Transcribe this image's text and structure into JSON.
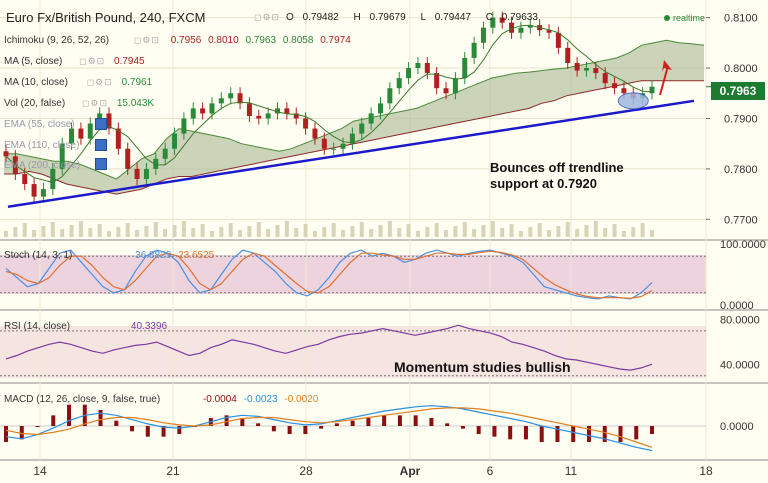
{
  "header": {
    "title": "Euro Fx/British Pound, 240, FXCM",
    "ohlc": {
      "o_label": "O",
      "o": "0.79482",
      "h_label": "H",
      "h": "0.79679",
      "l_label": "L",
      "l": "0.79447",
      "c_label": "C",
      "c": "0.79633"
    },
    "realtime": "realtime",
    "icons": "◻⚙⊡"
  },
  "indicators": {
    "ichimoku": {
      "label": "Ichimoku (9, 26, 52, 26)",
      "v1": "0.7956",
      "v2": "0.8010",
      "v3": "0.7963",
      "v4": "0.8058",
      "v5": "0.7974"
    },
    "ma5": {
      "label": "MA (5, close)",
      "value": "0.7945"
    },
    "ma10": {
      "label": "MA (10, close)",
      "value": "0.7961"
    },
    "vol": {
      "label": "Vol (20, false)",
      "value": "15.043K"
    },
    "ema55": {
      "label": "EMA (55, close)"
    },
    "ema110": {
      "label": "EMA (110, close)"
    },
    "ema200": {
      "label": "EMA (200, close)"
    }
  },
  "price_box": "0.7963",
  "annotations": {
    "bounce_line1": "Bounces off trendline",
    "bounce_line2": "support at 0.7920",
    "momentum": "Momentum studies bullish"
  },
  "stoch": {
    "label": "Stoch (14, 3, 1)",
    "k": "36.8829",
    "d": "23.6525",
    "axis": [
      "100.0000",
      "0.0000"
    ]
  },
  "rsi": {
    "label": "RSI (14, close)",
    "value": "40.3396",
    "axis": [
      "80.0000",
      "40.0000"
    ]
  },
  "macd": {
    "label": "MACD (12, 26, close, 9, false, true)",
    "v1": "-0.0004",
    "v2": "-0.0023",
    "v3": "-0.0020",
    "axis": [
      "0.0000"
    ]
  },
  "chart_data": {
    "type": "candlestick",
    "title": "Euro Fx/British Pound, 240, FXCM",
    "ylim": [
      0.7665,
      0.8125
    ],
    "price_ticks": [
      "0.8100",
      "0.8000",
      "0.7900",
      "0.7800",
      "0.7700"
    ],
    "x_ticks": [
      "14",
      "21",
      "28",
      "Apr",
      "6",
      "11",
      "18"
    ],
    "current_price": 0.7963,
    "trendline": {
      "start": 0.7725,
      "end": 0.7935
    },
    "candles_close": [
      0.7825,
      0.779,
      0.777,
      0.7745,
      0.776,
      0.78,
      0.785,
      0.788,
      0.786,
      0.789,
      0.791,
      0.788,
      0.784,
      0.78,
      0.778,
      0.78,
      0.782,
      0.784,
      0.787,
      0.79,
      0.792,
      0.791,
      0.793,
      0.794,
      0.795,
      0.793,
      0.7905,
      0.79,
      0.791,
      0.792,
      0.791,
      0.79,
      0.788,
      0.786,
      0.784,
      0.784,
      0.785,
      0.787,
      0.789,
      0.791,
      0.793,
      0.796,
      0.798,
      0.8,
      0.801,
      0.799,
      0.796,
      0.795,
      0.798,
      0.802,
      0.805,
      0.808,
      0.81,
      0.809,
      0.807,
      0.808,
      0.8085,
      0.8075,
      0.807,
      0.804,
      0.801,
      0.7995,
      0.8,
      0.799,
      0.797,
      0.796,
      0.795,
      0.794,
      0.795,
      0.7963
    ],
    "cloud_upper": [
      0.783,
      0.783,
      0.7825,
      0.782,
      0.7815,
      0.7815,
      0.781,
      0.78,
      0.779,
      0.778,
      0.78,
      0.782,
      0.783,
      0.786,
      0.788,
      0.7875,
      0.787,
      0.7865,
      0.786,
      0.785,
      0.7845,
      0.784,
      0.7835,
      0.784,
      0.785,
      0.786,
      0.787,
      0.788,
      0.7895,
      0.79,
      0.7905,
      0.791,
      0.7915,
      0.792,
      0.793,
      0.794,
      0.795,
      0.796,
      0.797,
      0.798,
      0.7985,
      0.799,
      0.7992,
      0.7995,
      0.7998,
      0.8,
      0.8005,
      0.801,
      0.8015,
      0.802,
      0.803,
      0.8045,
      0.805,
      0.8055,
      0.805,
      0.8048,
      0.8045
    ],
    "cloud_lower": [
      0.779,
      0.779,
      0.7795,
      0.779,
      0.778,
      0.777,
      0.7765,
      0.776,
      0.7755,
      0.775,
      0.7755,
      0.776,
      0.777,
      0.778,
      0.7785,
      0.7785,
      0.779,
      0.7795,
      0.78,
      0.7805,
      0.781,
      0.7815,
      0.782,
      0.7825,
      0.783,
      0.7835,
      0.784,
      0.7845,
      0.785,
      0.7855,
      0.786,
      0.7865,
      0.787,
      0.7875,
      0.788,
      0.7885,
      0.789,
      0.7895,
      0.79,
      0.7905,
      0.791,
      0.7915,
      0.792,
      0.793,
      0.7935,
      0.7945,
      0.795,
      0.7955,
      0.796,
      0.7965,
      0.797,
      0.7975,
      0.7975,
      0.7975,
      0.7975,
      0.7975,
      0.7975
    ],
    "stoch_k": [
      60,
      45,
      30,
      35,
      60,
      85,
      90,
      70,
      50,
      30,
      20,
      25,
      55,
      80,
      90,
      85,
      70,
      40,
      20,
      25,
      50,
      75,
      90,
      85,
      70,
      55,
      35,
      20,
      15,
      25,
      45,
      70,
      85,
      90,
      80,
      85,
      80,
      70,
      75,
      85,
      90,
      85,
      80,
      85,
      88,
      90,
      85,
      80,
      70,
      50,
      30,
      25,
      20,
      15,
      12,
      10,
      15,
      12,
      10,
      20,
      36.9
    ],
    "stoch_d": [
      55,
      50,
      40,
      35,
      45,
      65,
      80,
      80,
      65,
      45,
      30,
      25,
      40,
      60,
      80,
      85,
      80,
      60,
      35,
      25,
      35,
      55,
      75,
      85,
      80,
      65,
      50,
      35,
      22,
      20,
      30,
      50,
      70,
      85,
      85,
      82,
      80,
      75,
      75,
      80,
      85,
      85,
      83,
      83,
      86,
      88,
      86,
      82,
      75,
      60,
      45,
      33,
      25,
      18,
      14,
      12,
      12,
      12,
      11,
      14,
      23.7
    ],
    "stoch_levels": [
      80,
      20
    ],
    "rsi": [
      45,
      48,
      52,
      55,
      58,
      60,
      58,
      55,
      52,
      50,
      53,
      55,
      57,
      58,
      60,
      56,
      52,
      48,
      50,
      55,
      58,
      62,
      60,
      58,
      55,
      52,
      50,
      53,
      56,
      58,
      62,
      65,
      67,
      68,
      70,
      72,
      70,
      68,
      66,
      68,
      70,
      72,
      75,
      72,
      70,
      68,
      65,
      60,
      58,
      55,
      52,
      48,
      45,
      44,
      42,
      40,
      38,
      36,
      35,
      37,
      40.3
    ],
    "rsi_levels": [
      70,
      30
    ],
    "macd_line": [
      -0.001,
      -0.0012,
      -0.0008,
      -0.0002,
      0.0005,
      0.001,
      0.0012,
      0.001,
      0.0006,
      0.0002,
      -0.0001,
      -0.0002,
      0.0,
      0.0004,
      0.0008,
      0.001,
      0.0009,
      0.0006,
      0.0003,
      0.0001,
      0.0002,
      0.0005,
      0.0008,
      0.0011,
      0.0014,
      0.0016,
      0.0018,
      0.0019,
      0.0018,
      0.0016,
      0.0013,
      0.001,
      0.0007,
      0.0004,
      0.0,
      -0.0003,
      -0.0006,
      -0.0009,
      -0.0012,
      -0.0016,
      -0.002,
      -0.0023
    ],
    "macd_signal": [
      -0.0004,
      -0.0007,
      -0.0008,
      -0.0006,
      -0.0003,
      0.0002,
      0.0006,
      0.0008,
      0.0008,
      0.0006,
      0.0003,
      0.0001,
      0.0,
      0.0001,
      0.0004,
      0.0007,
      0.0008,
      0.0008,
      0.0006,
      0.0004,
      0.0003,
      0.0004,
      0.0006,
      0.0008,
      0.001,
      0.0012,
      0.0014,
      0.0016,
      0.0017,
      0.0017,
      0.0016,
      0.0014,
      0.0012,
      0.0009,
      0.0006,
      0.0003,
      0.0,
      -0.0003,
      -0.0006,
      -0.001,
      -0.0015,
      -0.002
    ],
    "annotations": [
      "Bounces off trendline support at 0.7920",
      "Momentum studies bullish"
    ]
  },
  "colors": {
    "up_candle": "#2a8a3a",
    "down_candle": "#b02020",
    "trendline": "#1a1acc",
    "cloud": "#b9c4a4",
    "cloud_top": "#4a8a3a",
    "cloud_bottom": "#8a2a2a",
    "stoch_k": "#4a90e0",
    "stoch_d": "#e07030",
    "rsi": "#7a3aa0",
    "macd_line": "#2a90e0",
    "macd_signal": "#e08020",
    "macd_hist": "#8a1010"
  }
}
